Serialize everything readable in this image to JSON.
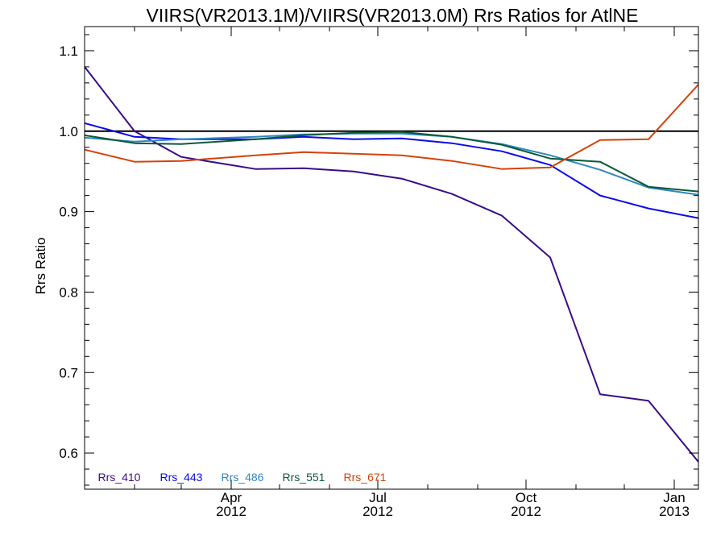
{
  "chart_data": {
    "type": "line",
    "title": "VIIRS(VR2013.1M)/VIIRS(VR2013.0M)  Rrs Ratios for AtlNE",
    "xlabel": "",
    "ylabel": "Rrs Ratio",
    "ylim": [
      0.555,
      1.13
    ],
    "xlim": [
      "2012-01-01",
      "2013-01-16"
    ],
    "y_ticks": [
      0.6,
      0.7,
      0.8,
      0.9,
      1.0,
      1.1
    ],
    "y_tick_labels": [
      "0.6",
      "0.7",
      "0.8",
      "0.9",
      "1.0",
      "1.1"
    ],
    "x_ticks": [
      {
        "date": "2012-04-01",
        "label": "Apr",
        "sublabel": "2012"
      },
      {
        "date": "2012-07-01",
        "label": "Jul",
        "sublabel": "2012"
      },
      {
        "date": "2012-10-01",
        "label": "Oct",
        "sublabel": "2012"
      },
      {
        "date": "2013-01-01",
        "label": "Jan",
        "sublabel": "2013"
      }
    ],
    "reference_line": 1.0,
    "grid": false,
    "legend_position": "bottom-left",
    "series": [
      {
        "name": "Rrs_410",
        "color": "#3a0c87",
        "x": [
          "2012-01-01",
          "2012-02-01",
          "2012-03-01",
          "2012-04-16",
          "2012-05-16",
          "2012-06-16",
          "2012-07-16",
          "2012-08-16",
          "2012-09-16",
          "2012-10-16",
          "2012-11-16",
          "2012-12-16",
          "2013-01-16"
        ],
        "y": [
          1.08,
          1.0,
          0.968,
          0.953,
          0.954,
          0.95,
          0.941,
          0.922,
          0.895,
          0.843,
          0.673,
          0.665,
          0.589
        ]
      },
      {
        "name": "Rrs_443",
        "color": "#0a0ae8",
        "x": [
          "2012-01-01",
          "2012-02-01",
          "2012-03-01",
          "2012-04-16",
          "2012-05-16",
          "2012-06-16",
          "2012-07-16",
          "2012-08-16",
          "2012-09-16",
          "2012-10-16",
          "2012-11-16",
          "2012-12-16",
          "2013-01-16"
        ],
        "y": [
          1.01,
          0.993,
          0.99,
          0.99,
          0.993,
          0.99,
          0.991,
          0.985,
          0.975,
          0.958,
          0.92,
          0.904,
          0.892
        ]
      },
      {
        "name": "Rrs_486",
        "color": "#2f87c0",
        "x": [
          "2012-01-01",
          "2012-02-01",
          "2012-03-01",
          "2012-04-16",
          "2012-05-16",
          "2012-06-16",
          "2012-07-16",
          "2012-08-16",
          "2012-09-16",
          "2012-10-16",
          "2012-11-16",
          "2012-12-16",
          "2013-01-16"
        ],
        "y": [
          0.992,
          0.987,
          0.99,
          0.993,
          0.996,
          0.997,
          0.997,
          0.993,
          0.984,
          0.97,
          0.952,
          0.93,
          0.921
        ]
      },
      {
        "name": "Rrs_551",
        "color": "#0b5a36",
        "x": [
          "2012-01-01",
          "2012-02-01",
          "2012-03-01",
          "2012-04-16",
          "2012-05-16",
          "2012-06-16",
          "2012-07-16",
          "2012-08-16",
          "2012-09-16",
          "2012-10-16",
          "2012-11-16",
          "2012-12-16",
          "2013-01-16"
        ],
        "y": [
          0.995,
          0.985,
          0.984,
          0.99,
          0.995,
          0.998,
          0.999,
          0.993,
          0.983,
          0.966,
          0.962,
          0.931,
          0.925
        ]
      },
      {
        "name": "Rrs_671",
        "color": "#d4420a",
        "x": [
          "2012-01-01",
          "2012-02-01",
          "2012-03-01",
          "2012-04-16",
          "2012-05-16",
          "2012-06-16",
          "2012-07-16",
          "2012-08-16",
          "2012-09-16",
          "2012-10-16",
          "2012-11-16",
          "2012-12-16",
          "2013-01-16"
        ],
        "y": [
          0.977,
          0.962,
          0.963,
          0.97,
          0.974,
          0.972,
          0.97,
          0.963,
          0.953,
          0.955,
          0.989,
          0.99,
          1.058
        ]
      }
    ]
  }
}
